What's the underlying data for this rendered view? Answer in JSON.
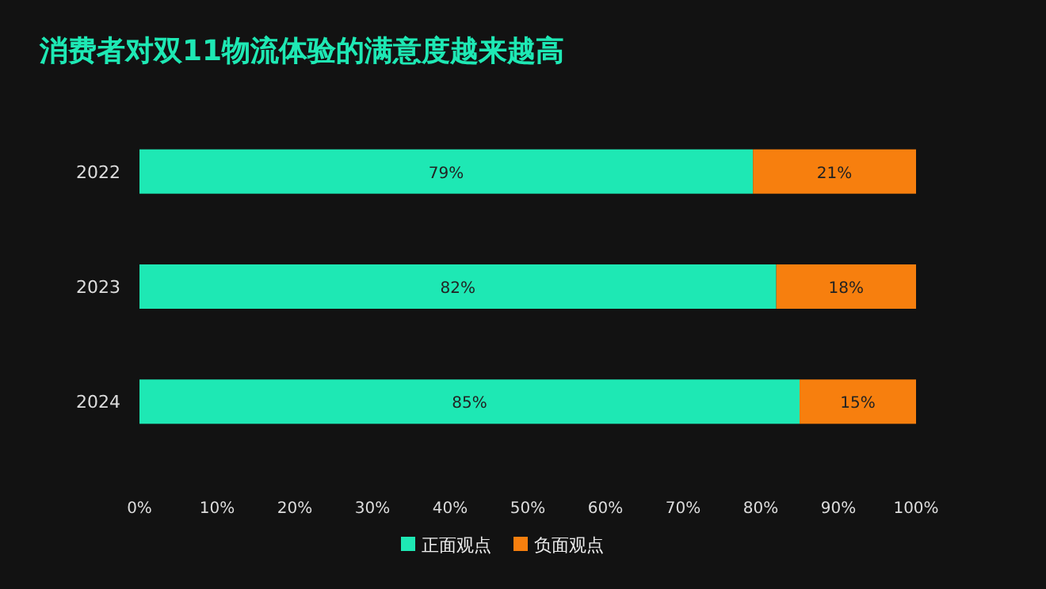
{
  "chart_data": {
    "type": "bar",
    "orientation": "horizontal",
    "stacked": true,
    "title": "消费者对双11物流体验的满意度越来越高",
    "categories": [
      "2022",
      "2023",
      "2024"
    ],
    "series": [
      {
        "name": "正面观点",
        "color": "#1ee8b4",
        "values": [
          79,
          82,
          85
        ],
        "value_labels": [
          "79%",
          "82%",
          "85%"
        ]
      },
      {
        "name": "负面观点",
        "color": "#f77f0e",
        "values": [
          21,
          18,
          15
        ],
        "value_labels": [
          "21%",
          "18%",
          "15%"
        ]
      }
    ],
    "xlim": [
      0,
      100
    ],
    "xticks": [
      {
        "value": 0,
        "label": "0%"
      },
      {
        "value": 10,
        "label": "10%"
      },
      {
        "value": 20,
        "label": "20%"
      },
      {
        "value": 30,
        "label": "30%"
      },
      {
        "value": 40,
        "label": "40%"
      },
      {
        "value": 50,
        "label": "50%"
      },
      {
        "value": 60,
        "label": "60%"
      },
      {
        "value": 70,
        "label": "70%"
      },
      {
        "value": 80,
        "label": "80%"
      },
      {
        "value": 90,
        "label": "90%"
      },
      {
        "value": 100,
        "label": "100%"
      }
    ],
    "grid": false,
    "legend": "bottom"
  }
}
